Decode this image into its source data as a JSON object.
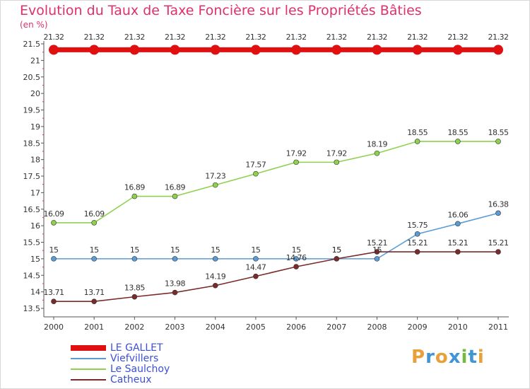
{
  "title": "Evolution du Taux de Taxe Foncière sur les Propriétés Bâties",
  "unit": "(en %)",
  "logo": {
    "letters": [
      "P",
      "r",
      "o",
      "x",
      "i",
      "t",
      "i"
    ],
    "colors": [
      "#e8a13a",
      "#3f95d6",
      "#e8a13a",
      "#3f95d6",
      "#76b940",
      "#3f95d6",
      "#e8a13a"
    ]
  },
  "chart_data": {
    "type": "line",
    "x": [
      "2000",
      "2001",
      "2002",
      "2003",
      "2004",
      "2005",
      "2006",
      "2007",
      "2008",
      "2009",
      "2010",
      "2011"
    ],
    "ylim": [
      13.5,
      21.5
    ],
    "yticks": [
      "13.5",
      "14",
      "14.5",
      "15",
      "15.5",
      "16",
      "16.5",
      "17",
      "17.5",
      "18",
      "18.5",
      "19",
      "19.5",
      "20",
      "20.5",
      "21",
      "21.5"
    ],
    "grid": false,
    "legend_position": "bottom-left",
    "series": [
      {
        "name": "LE GALLET",
        "color": "#e01010",
        "values": [
          21.32,
          21.32,
          21.32,
          21.32,
          21.32,
          21.32,
          21.32,
          21.32,
          21.32,
          21.32,
          21.32,
          21.32
        ],
        "labels": [
          "21.32",
          "21.32",
          "21.32",
          "21.32",
          "21.32",
          "21.32",
          "21.32",
          "21.32",
          "21.32",
          "21.32",
          "21.32",
          "21.32"
        ]
      },
      {
        "name": "Viefvillers",
        "color": "#5b9bd5",
        "values": [
          15,
          15,
          15,
          15,
          15,
          15,
          15,
          15,
          15,
          15.75,
          16.06,
          16.38
        ],
        "labels": [
          "15",
          "15",
          "15",
          "15",
          "15",
          "15",
          "15",
          "15",
          "15",
          "15.75",
          "16.06",
          "16.38"
        ]
      },
      {
        "name": "Le Saulchoy",
        "color": "#8fd14f",
        "values": [
          16.09,
          16.09,
          16.89,
          16.89,
          17.23,
          17.57,
          17.92,
          17.92,
          18.19,
          18.55,
          18.55,
          18.55
        ],
        "labels": [
          "16.09",
          "16.09",
          "16.89",
          "16.89",
          "17.23",
          "17.57",
          "17.92",
          "17.92",
          "18.19",
          "18.55",
          "18.55",
          "18.55"
        ]
      },
      {
        "name": "Catheux",
        "color": "#7a2a2a",
        "values": [
          13.71,
          13.71,
          13.85,
          13.98,
          14.19,
          14.47,
          14.76,
          15,
          15.21,
          15.21,
          15.21,
          15.21
        ],
        "labels": [
          "13.71",
          "13.71",
          "13.85",
          "13.98",
          "14.19",
          "14.47",
          "14.76",
          "15",
          "15.21",
          "15.21",
          "15.21",
          "15.21"
        ]
      }
    ]
  }
}
